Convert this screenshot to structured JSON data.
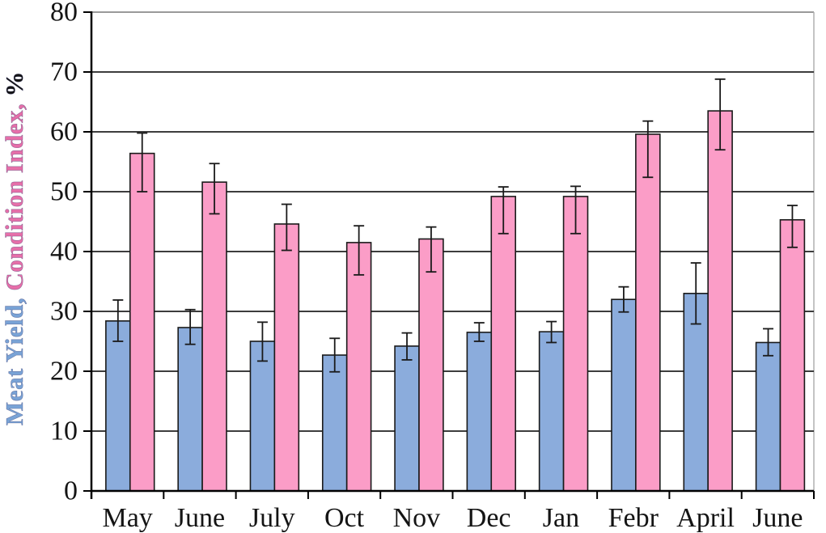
{
  "figure": {
    "background": "#ffffff"
  },
  "chart_data": {
    "type": "bar",
    "title": "",
    "xlabel": "",
    "ylabel": "Meat Yield, Condition Index, %",
    "ylabel_parts": [
      {
        "text": "Meat Yield,",
        "color": "#79A3D6"
      },
      {
        "text": " Condition Index,",
        "color": "#E66FA9"
      },
      {
        "text": " %",
        "color": "#141414"
      }
    ],
    "categories": [
      "May",
      "June",
      "July",
      "Oct",
      "Nov",
      "Dec",
      "Jan",
      "Febr",
      "April",
      "June"
    ],
    "series": [
      {
        "name": "Meat Yield",
        "color": "#8BACDC",
        "values": [
          28.4,
          27.3,
          25.0,
          22.7,
          24.2,
          26.5,
          26.6,
          32.0,
          33.0,
          24.8
        ],
        "err_plus": [
          3.5,
          3.0,
          3.2,
          2.8,
          2.2,
          1.6,
          1.7,
          2.1,
          5.1,
          2.3
        ],
        "err_minus": [
          3.4,
          2.8,
          3.3,
          2.8,
          2.3,
          1.5,
          1.8,
          2.1,
          5.1,
          2.2
        ]
      },
      {
        "name": "Condition Index",
        "color": "#FB9DC7",
        "values": [
          56.4,
          51.6,
          44.6,
          41.5,
          42.1,
          49.2,
          49.2,
          59.6,
          63.5,
          45.3
        ],
        "err_plus": [
          3.4,
          3.1,
          3.3,
          2.8,
          2.0,
          1.6,
          1.7,
          2.2,
          5.3,
          2.4
        ],
        "err_minus": [
          6.4,
          5.3,
          4.4,
          5.4,
          5.5,
          6.2,
          6.2,
          7.2,
          6.5,
          4.6
        ]
      }
    ],
    "ylim": [
      0,
      80
    ],
    "yticks": [
      0,
      10,
      20,
      30,
      40,
      50,
      60,
      70,
      80
    ],
    "grid": true,
    "error_bars": true,
    "legend_position": "none"
  },
  "style_colors": {
    "gridline": "#3d3d3d",
    "axis": "#000000",
    "bar_border": "#1a1a1a",
    "error_bar": "#1a1a1a",
    "top_border": "#9a9a9a",
    "right_border": "#b0b0b0"
  }
}
